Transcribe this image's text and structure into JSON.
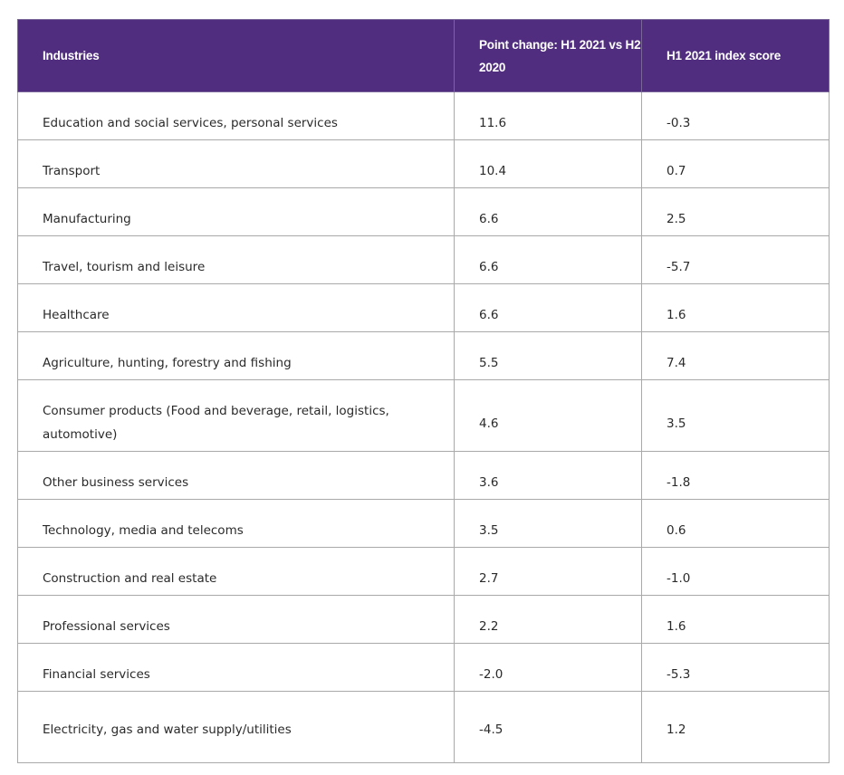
{
  "table": {
    "headers": {
      "industries": "Industries",
      "change": "Point change: H1 2021 vs H2 2020",
      "score": "H1 2021 index score"
    },
    "rows": [
      {
        "industry": "Education and social services, personal services",
        "change": "11.6",
        "score": "-0.3"
      },
      {
        "industry": "Transport",
        "change": "10.4",
        "score": "0.7"
      },
      {
        "industry": "Manufacturing",
        "change": "6.6",
        "score": "2.5"
      },
      {
        "industry": "Travel, tourism and leisure",
        "change": "6.6",
        "score": "-5.7"
      },
      {
        "industry": "Healthcare",
        "change": "6.6",
        "score": "1.6"
      },
      {
        "industry": "Agriculture, hunting, forestry and fishing",
        "change": "5.5",
        "score": "7.4"
      },
      {
        "industry": "Consumer products (Food and beverage, retail, logistics, automotive)",
        "change": "4.6",
        "score": "3.5"
      },
      {
        "industry": "Other business services",
        "change": "3.6",
        "score": "-1.8"
      },
      {
        "industry": "Technology, media and telecoms",
        "change": "3.5",
        "score": "0.6"
      },
      {
        "industry": "Construction and real estate",
        "change": "2.7",
        "score": "-1.0"
      },
      {
        "industry": "Professional services",
        "change": "2.2",
        "score": "1.6"
      },
      {
        "industry": "Financial services",
        "change": "-2.0",
        "score": "-5.3"
      },
      {
        "industry": "Electricity, gas and water supply/utilities",
        "change": "-4.5",
        "score": "1.2"
      }
    ]
  },
  "colors": {
    "header_background": "#512d7f",
    "header_text": "#ffffff",
    "border": "#a9a9a9",
    "body_text": "#2a2a2a"
  }
}
